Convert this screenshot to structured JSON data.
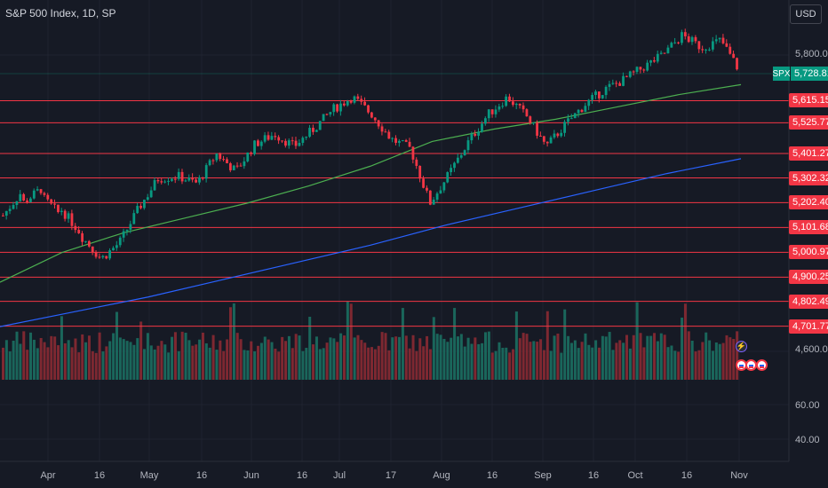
{
  "header": {
    "title": "S&P 500 Index, 1D, SP",
    "currency_button": "USD"
  },
  "price_axis": {
    "tick_labels": [
      "5,800.00",
      "4,600.00"
    ],
    "volume_tick_labels": [
      "60.00",
      "40.00"
    ],
    "current": {
      "symbol": "SPX",
      "value": "5,728.81"
    }
  },
  "time_axis": {
    "labels": [
      "Apr",
      "16",
      "May",
      "16",
      "Jun",
      "16",
      "Jul",
      "17",
      "Aug",
      "16",
      "Sep",
      "16",
      "Oct",
      "16",
      "Nov"
    ]
  },
  "colors": {
    "up": "#089981",
    "down": "#f23645",
    "ma50": "#4caf50",
    "ma200": "#2962ff",
    "level": "#f23645"
  },
  "chart_data": {
    "type": "candlestick",
    "title": "S&P 500 Index, 1D, SP",
    "x_range": [
      "Mar 2024",
      "Nov 2024"
    ],
    "ylim": [
      4600,
      5960
    ],
    "horizontal_levels": [
      5615.15,
      5525.77,
      5401.27,
      5302.32,
      5202.4,
      5101.68,
      5000.97,
      4900.25,
      4802.49,
      4701.77
    ],
    "last_price": 5728.81,
    "close_path": [
      [
        5150,
        5250
      ],
      [
        5200,
        5260
      ],
      [
        5225,
        5150
      ],
      [
        5175,
        5080
      ],
      [
        5070,
        4980
      ],
      [
        4970,
        5040
      ],
      [
        5040,
        5180
      ],
      [
        5180,
        5300
      ],
      [
        5300,
        5310
      ],
      [
        5310,
        5280
      ],
      [
        5280,
        5400
      ],
      [
        5400,
        5330
      ],
      [
        5330,
        5440
      ],
      [
        5440,
        5480
      ],
      [
        5480,
        5430
      ],
      [
        5430,
        5500
      ],
      [
        5500,
        5580
      ],
      [
        5580,
        5630
      ],
      [
        5630,
        5560
      ],
      [
        5560,
        5460
      ],
      [
        5460,
        5420
      ],
      [
        5420,
        5200
      ],
      [
        5200,
        5320
      ],
      [
        5320,
        5450
      ],
      [
        5450,
        5560
      ],
      [
        5560,
        5630
      ],
      [
        5630,
        5550
      ],
      [
        5550,
        5430
      ],
      [
        5430,
        5520
      ],
      [
        5520,
        5600
      ],
      [
        5600,
        5660
      ],
      [
        5660,
        5700
      ],
      [
        5700,
        5750
      ],
      [
        5750,
        5800
      ],
      [
        5800,
        5880
      ],
      [
        5880,
        5830
      ],
      [
        5830,
        5860
      ],
      [
        5860,
        5730
      ]
    ],
    "series": [
      {
        "name": "",
        "type": "moving-average",
        "values": [
          4880,
          5000,
          5080,
          5140,
          5200,
          5270,
          5350,
          5450,
          5500,
          5540,
          5590,
          5640,
          5680
        ]
      },
      {
        "name": "",
        "type": "moving-average",
        "values": [
          4700,
          4760,
          4820,
          4890,
          4960,
          5030,
          5110,
          5180,
          5250,
          5320,
          5380
        ]
      }
    ]
  }
}
